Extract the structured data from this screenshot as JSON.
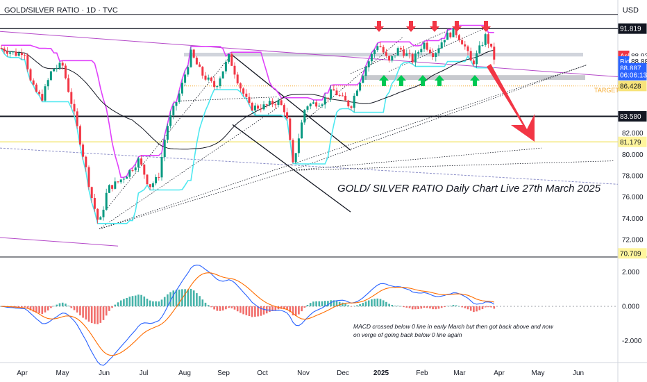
{
  "header": {
    "title": "GOLD/SILVER RATIO · 1D · TVC",
    "currency": "USD"
  },
  "chart_data": {
    "type": "candlestick",
    "annotation_title": "GOLD/ SILVER RATIO Daily Chart Live 27th March 2025",
    "annotation_macd_line1": "MACD crossed below 0 line in early March but then got back above and now",
    "annotation_macd_line2": "on verge of going back below 0 line again",
    "target_label": "TARGET",
    "x_ticks": [
      "Apr",
      "May",
      "Jun",
      "Jul",
      "Aug",
      "Sep",
      "Oct",
      "Nov",
      "Dec",
      "2025",
      "Feb",
      "Mar",
      "Apr",
      "May",
      "Jun"
    ],
    "x_tick_bold": "2025",
    "y_ticks": [
      "82.000",
      "80.000",
      "78.000",
      "76.000",
      "74.000",
      "72.000"
    ],
    "ylim": [
      70.5,
      93.2
    ],
    "price_tags": [
      {
        "label": "91.819",
        "value": 91.819,
        "bg": "#131722",
        "fg": "#ffffff"
      },
      {
        "label": "Ask",
        "value": 89.26,
        "bg": "#f23645",
        "fg": "#ffffff",
        "short": true
      },
      {
        "label": "88.937",
        "value": 89.26,
        "bg": "#ffffff",
        "fg": "#131722",
        "offset": true
      },
      {
        "label": "Bid",
        "value": 88.73,
        "bg": "#2962ff",
        "fg": "#ffffff",
        "short": true
      },
      {
        "label": "88.887",
        "value": 88.73,
        "bg": "#ffffff",
        "fg": "#131722",
        "offset": true
      },
      {
        "label": "88.887",
        "value": 88.1,
        "bg": "#2962ff",
        "fg": "#ffffff"
      },
      {
        "label": "06:06:13",
        "value": 87.45,
        "bg": "#2962ff",
        "fg": "#ffffff"
      },
      {
        "label": "86.428",
        "value": 86.428,
        "bg": "#f7e37a",
        "fg": "#131722"
      },
      {
        "label": "83.580",
        "value": 83.58,
        "bg": "#131722",
        "fg": "#ffffff"
      },
      {
        "label": "81.179",
        "value": 81.179,
        "bg": "#fff59d",
        "fg": "#131722"
      },
      {
        "label": "70.709",
        "value": 70.709,
        "bg": "#fff59d",
        "fg": "#131722"
      }
    ],
    "macd_ticks": [
      "2.000",
      "0.000",
      "-2.000"
    ],
    "macd_ylim": [
      -3.2,
      2.8
    ],
    "colors": {
      "up": "#089981",
      "down": "#f23645",
      "upper_band": "#e040fb",
      "lower_band": "#4de8f0",
      "ma": "#131722",
      "macd": "#2962ff",
      "signal": "#ff6d00",
      "target": "#f5a623",
      "arrow_down": "#f23645",
      "arrow_up": "#00c853",
      "channel": "#b54ac9"
    }
  }
}
